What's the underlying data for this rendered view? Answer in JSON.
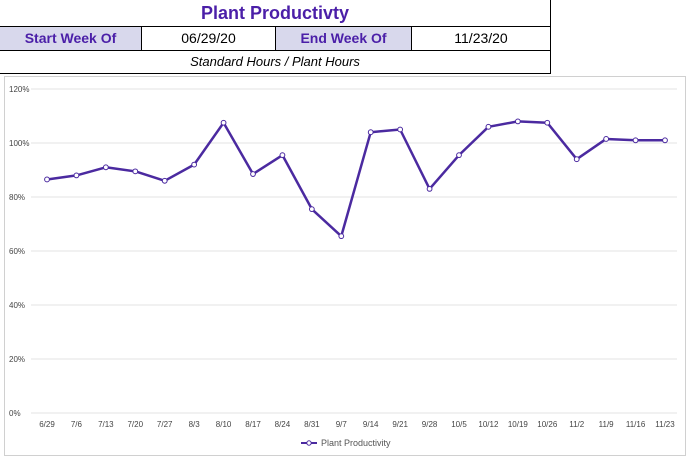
{
  "header": {
    "title": "Plant Productivty",
    "start_label": "Start Week Of",
    "start_value": "06/29/20",
    "end_label": "End Week Of",
    "end_value": "11/23/20",
    "subtitle": "Standard Hours / Plant Hours"
  },
  "colors": {
    "line": "#4b2aa0",
    "title": "#4b1fa8",
    "label_bg": "#d8d8ec",
    "grid": "#e3e3e3"
  },
  "chart_data": {
    "type": "line",
    "title": "",
    "xlabel": "",
    "ylabel": "",
    "categories": [
      "6/29",
      "7/6",
      "7/13",
      "7/20",
      "7/27",
      "8/3",
      "8/10",
      "8/17",
      "8/24",
      "8/31",
      "9/7",
      "9/14",
      "9/21",
      "9/28",
      "10/5",
      "10/12",
      "10/19",
      "10/26",
      "11/2",
      "11/9",
      "11/16",
      "11/23"
    ],
    "y_ticks": [
      "0%",
      "20%",
      "40%",
      "60%",
      "80%",
      "100%",
      "120%"
    ],
    "ylim": [
      0,
      120
    ],
    "grid": true,
    "legend": "bottom",
    "series": [
      {
        "name": "Plant Productivity",
        "values": [
          86.5,
          88.0,
          91.0,
          89.5,
          86.0,
          92.0,
          107.5,
          88.5,
          95.5,
          75.5,
          65.5,
          104.0,
          105.0,
          83.0,
          95.5,
          106.0,
          108.0,
          107.5,
          94.0,
          101.5,
          101.0,
          101.0
        ]
      }
    ]
  }
}
